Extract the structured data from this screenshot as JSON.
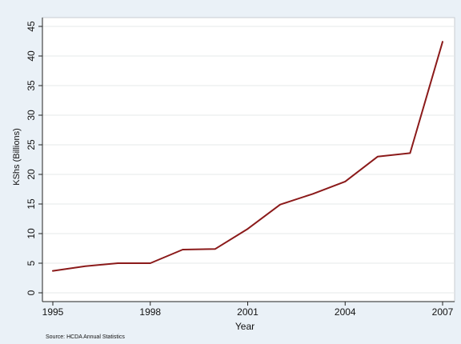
{
  "chart_data": {
    "type": "line",
    "xlabel": "Year",
    "ylabel": "KShs (Billions)",
    "xticks": [
      1995,
      1998,
      2001,
      2004,
      2007
    ],
    "yticks": [
      0,
      5,
      10,
      15,
      20,
      25,
      30,
      35,
      40,
      45
    ],
    "xlim": [
      1995,
      2007
    ],
    "ylim": [
      0,
      45
    ],
    "grid": true,
    "source": "Source: HCDA Annual Statistics",
    "line_color": "#8b1a1a",
    "plot_background": "#ffffff",
    "outer_background": "#eaf1f7",
    "series": [
      {
        "x": [
          1995,
          1996,
          1997,
          1998,
          1999,
          2000,
          2001,
          2002,
          2003,
          2004,
          2005,
          2006,
          2007
        ],
        "values": [
          3.7,
          4.5,
          5.0,
          5.0,
          7.3,
          7.4,
          10.8,
          14.9,
          16.7,
          18.8,
          23.0,
          23.6,
          42.4
        ]
      }
    ]
  }
}
